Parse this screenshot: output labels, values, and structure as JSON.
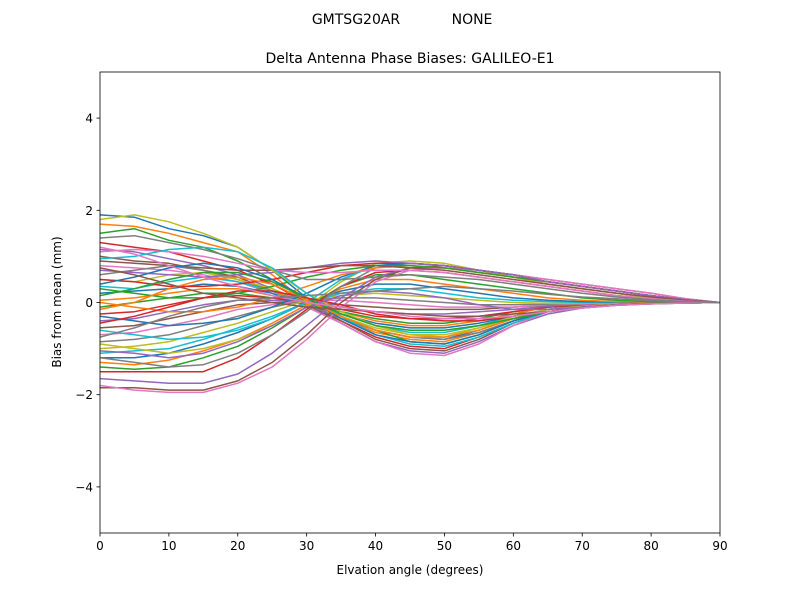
{
  "chart_data": {
    "type": "line",
    "suptitle_left": "GMTSG20AR",
    "suptitle_right": "NONE",
    "title": "Delta Antenna Phase Biases: GALILEO-E1",
    "xlabel": "Elvation angle (degrees)",
    "ylabel": "Bias from mean (mm)",
    "xlim": [
      0,
      90
    ],
    "ylim": [
      -5,
      5
    ],
    "xticks": [
      0,
      10,
      20,
      30,
      40,
      50,
      60,
      70,
      80,
      90
    ],
    "yticks": [
      -4,
      -2,
      0,
      2,
      4
    ],
    "grid": false,
    "legend": "none",
    "x": [
      0,
      5,
      10,
      15,
      20,
      25,
      30,
      35,
      40,
      45,
      50,
      55,
      60,
      65,
      70,
      75,
      80,
      85,
      90
    ],
    "color_cycle": [
      "#1f77b4",
      "#ff7f0e",
      "#2ca02c",
      "#d62728",
      "#9467bd",
      "#8c564b",
      "#e377c2",
      "#7f7f7f",
      "#bcbd22",
      "#17becf"
    ],
    "series": [
      {
        "values": [
          1.9,
          1.85,
          1.6,
          1.45,
          1.2,
          0.7,
          0.1,
          -0.3,
          -0.6,
          -0.75,
          -0.8,
          -0.6,
          -0.35,
          -0.2,
          -0.1,
          -0.05,
          -0.02,
          -0.01,
          0
        ]
      },
      {
        "values": [
          1.7,
          1.65,
          1.5,
          1.3,
          1.1,
          0.6,
          0.0,
          -0.35,
          -0.65,
          -0.8,
          -0.85,
          -0.65,
          -0.4,
          -0.2,
          -0.1,
          -0.05,
          -0.02,
          -0.01,
          0
        ]
      },
      {
        "values": [
          1.5,
          1.6,
          1.35,
          1.2,
          0.9,
          0.5,
          0.05,
          -0.3,
          -0.6,
          -0.85,
          -0.9,
          -0.7,
          -0.4,
          -0.15,
          -0.05,
          -0.02,
          -0.01,
          0,
          0
        ]
      },
      {
        "values": [
          1.3,
          1.2,
          1.1,
          0.9,
          0.7,
          0.4,
          0.0,
          -0.4,
          -0.75,
          -0.95,
          -1.0,
          -0.75,
          -0.45,
          -0.2,
          -0.1,
          -0.05,
          -0.02,
          -0.01,
          0
        ]
      },
      {
        "values": [
          1.15,
          1.1,
          0.95,
          0.8,
          0.6,
          0.3,
          -0.05,
          -0.45,
          -0.85,
          -1.05,
          -1.1,
          -0.85,
          -0.5,
          -0.25,
          -0.12,
          -0.06,
          -0.03,
          -0.01,
          0
        ]
      },
      {
        "values": [
          1.0,
          0.9,
          0.85,
          0.7,
          0.55,
          0.25,
          -0.05,
          -0.4,
          -0.8,
          -1.0,
          -1.05,
          -0.8,
          -0.45,
          -0.2,
          -0.1,
          -0.05,
          -0.02,
          -0.01,
          0
        ]
      },
      {
        "values": [
          0.8,
          0.75,
          0.7,
          0.6,
          0.45,
          0.2,
          -0.1,
          -0.45,
          -0.85,
          -1.1,
          -1.15,
          -0.9,
          -0.5,
          -0.2,
          -0.08,
          -0.04,
          -0.02,
          -0.01,
          0
        ]
      },
      {
        "values": [
          0.6,
          0.7,
          0.8,
          0.7,
          0.5,
          0.25,
          -0.05,
          -0.35,
          -0.6,
          -0.75,
          -0.8,
          -0.65,
          -0.4,
          -0.2,
          -0.1,
          -0.05,
          -0.02,
          -0.01,
          0
        ]
      },
      {
        "values": [
          0.5,
          0.45,
          0.6,
          0.65,
          0.5,
          0.3,
          0.0,
          -0.3,
          -0.55,
          -0.7,
          -0.7,
          -0.55,
          -0.35,
          -0.15,
          -0.08,
          -0.04,
          -0.02,
          -0.01,
          0
        ]
      },
      {
        "values": [
          0.35,
          0.3,
          0.45,
          0.55,
          0.45,
          0.25,
          0.0,
          -0.25,
          -0.5,
          -0.65,
          -0.65,
          -0.5,
          -0.3,
          -0.15,
          -0.07,
          -0.03,
          -0.01,
          0,
          0
        ]
      },
      {
        "values": [
          0.2,
          0.25,
          0.3,
          0.4,
          0.35,
          0.2,
          -0.05,
          -0.25,
          -0.45,
          -0.55,
          -0.55,
          -0.45,
          -0.3,
          -0.15,
          -0.07,
          -0.03,
          -0.01,
          0,
          0
        ]
      },
      {
        "values": [
          0.05,
          0.1,
          0.2,
          0.3,
          0.3,
          0.15,
          -0.05,
          -0.2,
          -0.4,
          -0.5,
          -0.5,
          -0.4,
          -0.25,
          -0.1,
          -0.05,
          -0.02,
          -0.01,
          0,
          0
        ]
      },
      {
        "values": [
          -0.1,
          0.0,
          0.1,
          0.2,
          0.2,
          0.1,
          -0.05,
          -0.2,
          -0.35,
          -0.45,
          -0.45,
          -0.35,
          -0.2,
          -0.1,
          -0.05,
          -0.02,
          -0.01,
          0,
          0
        ]
      },
      {
        "values": [
          -0.25,
          -0.2,
          -0.05,
          0.1,
          0.15,
          0.1,
          0.0,
          -0.15,
          -0.3,
          -0.35,
          -0.35,
          -0.3,
          -0.2,
          -0.1,
          -0.05,
          -0.02,
          -0.01,
          0,
          0
        ]
      },
      {
        "values": [
          -0.4,
          -0.35,
          -0.2,
          -0.05,
          0.05,
          0.05,
          0.0,
          -0.1,
          -0.2,
          -0.25,
          -0.25,
          -0.2,
          -0.15,
          -0.08,
          -0.04,
          -0.02,
          -0.01,
          0,
          0
        ]
      },
      {
        "values": [
          -0.55,
          -0.5,
          -0.35,
          -0.2,
          -0.05,
          0.0,
          0.0,
          -0.05,
          -0.1,
          -0.15,
          -0.15,
          -0.15,
          -0.1,
          -0.06,
          -0.03,
          -0.01,
          0,
          0,
          0
        ]
      },
      {
        "values": [
          -0.7,
          -0.65,
          -0.5,
          -0.35,
          -0.15,
          -0.05,
          0.05,
          0.05,
          0.0,
          -0.05,
          -0.1,
          -0.1,
          -0.1,
          -0.05,
          -0.03,
          -0.01,
          0,
          0,
          0
        ]
      },
      {
        "values": [
          -0.85,
          -0.8,
          -0.7,
          -0.5,
          -0.3,
          -0.1,
          0.05,
          0.1,
          0.1,
          0.05,
          0.0,
          -0.05,
          -0.05,
          -0.04,
          -0.02,
          -0.01,
          0,
          0,
          0
        ]
      },
      {
        "values": [
          -1.0,
          -0.95,
          -0.85,
          -0.65,
          -0.45,
          -0.2,
          0.05,
          0.15,
          0.2,
          0.15,
          0.1,
          0.05,
          0.0,
          -0.02,
          -0.02,
          -0.01,
          0,
          0,
          0
        ]
      },
      {
        "values": [
          -1.1,
          -1.05,
          -1.0,
          -0.8,
          -0.55,
          -0.3,
          0.0,
          0.2,
          0.3,
          0.3,
          0.2,
          0.1,
          0.05,
          0.02,
          0.0,
          0.0,
          0,
          0,
          0
        ]
      },
      {
        "values": [
          -1.2,
          -1.2,
          -1.1,
          -0.9,
          -0.65,
          -0.35,
          0.0,
          0.25,
          0.4,
          0.4,
          0.3,
          0.2,
          0.1,
          0.05,
          0.02,
          0.01,
          0,
          0,
          0
        ]
      },
      {
        "values": [
          -1.3,
          -1.35,
          -1.25,
          -1.05,
          -0.8,
          -0.45,
          -0.05,
          0.3,
          0.5,
          0.5,
          0.4,
          0.3,
          0.2,
          0.1,
          0.05,
          0.02,
          0.01,
          0,
          0
        ]
      },
      {
        "values": [
          -1.4,
          -1.45,
          -1.4,
          -1.2,
          -0.95,
          -0.55,
          -0.1,
          0.35,
          0.6,
          0.6,
          0.5,
          0.4,
          0.3,
          0.2,
          0.1,
          0.05,
          0.02,
          0.01,
          0
        ]
      },
      {
        "values": [
          -1.5,
          -1.5,
          -1.5,
          -1.5,
          -1.2,
          -0.7,
          -0.15,
          0.35,
          0.65,
          0.7,
          0.65,
          0.55,
          0.45,
          0.35,
          0.25,
          0.15,
          0.08,
          0.03,
          0
        ]
      },
      {
        "values": [
          -1.65,
          -1.7,
          -1.75,
          -1.75,
          -1.55,
          -1.1,
          -0.5,
          0.1,
          0.55,
          0.75,
          0.75,
          0.65,
          0.55,
          0.45,
          0.35,
          0.25,
          0.15,
          0.06,
          0
        ]
      },
      {
        "values": [
          -1.85,
          -1.85,
          -1.9,
          -1.9,
          -1.7,
          -1.3,
          -0.7,
          0.0,
          0.5,
          0.75,
          0.8,
          0.7,
          0.6,
          0.5,
          0.4,
          0.3,
          0.2,
          0.08,
          0
        ]
      },
      {
        "values": [
          -1.8,
          -1.9,
          -1.95,
          -1.95,
          -1.75,
          -1.4,
          -0.8,
          -0.1,
          0.45,
          0.7,
          0.75,
          0.7,
          0.6,
          0.5,
          0.4,
          0.3,
          0.2,
          0.08,
          0
        ]
      },
      {
        "values": [
          -1.2,
          -1.3,
          -1.4,
          -1.35,
          -1.1,
          -0.7,
          -0.2,
          0.35,
          0.75,
          0.85,
          0.8,
          0.7,
          0.55,
          0.4,
          0.3,
          0.2,
          0.1,
          0.04,
          0
        ]
      },
      {
        "values": [
          -0.9,
          -1.0,
          -1.1,
          -1.0,
          -0.8,
          -0.5,
          -0.1,
          0.45,
          0.85,
          0.9,
          0.85,
          0.7,
          0.55,
          0.4,
          0.3,
          0.2,
          0.1,
          0.04,
          0
        ]
      },
      {
        "values": [
          -0.6,
          -0.7,
          -0.8,
          -0.75,
          -0.6,
          -0.35,
          0.0,
          0.5,
          0.8,
          0.85,
          0.8,
          0.7,
          0.6,
          0.45,
          0.35,
          0.25,
          0.15,
          0.06,
          0
        ]
      },
      {
        "values": [
          -0.3,
          -0.4,
          -0.5,
          -0.45,
          -0.35,
          -0.1,
          0.2,
          0.55,
          0.8,
          0.85,
          0.8,
          0.7,
          0.6,
          0.45,
          0.35,
          0.25,
          0.15,
          0.06,
          0
        ]
      },
      {
        "values": [
          0.0,
          -0.1,
          -0.2,
          -0.2,
          -0.1,
          0.1,
          0.35,
          0.6,
          0.75,
          0.8,
          0.75,
          0.65,
          0.55,
          0.45,
          0.35,
          0.25,
          0.15,
          0.06,
          0
        ]
      },
      {
        "values": [
          0.3,
          0.2,
          0.1,
          0.1,
          0.2,
          0.35,
          0.55,
          0.7,
          0.8,
          0.8,
          0.75,
          0.65,
          0.55,
          0.45,
          0.35,
          0.25,
          0.15,
          0.06,
          0
        ]
      },
      {
        "values": [
          0.5,
          0.45,
          0.35,
          0.35,
          0.4,
          0.5,
          0.65,
          0.8,
          0.85,
          0.85,
          0.8,
          0.7,
          0.6,
          0.45,
          0.35,
          0.25,
          0.15,
          0.06,
          0
        ]
      },
      {
        "values": [
          0.7,
          0.65,
          0.6,
          0.55,
          0.6,
          0.65,
          0.75,
          0.85,
          0.9,
          0.85,
          0.8,
          0.7,
          0.6,
          0.45,
          0.35,
          0.25,
          0.15,
          0.06,
          0
        ]
      },
      {
        "values": [
          0.9,
          0.85,
          0.8,
          0.75,
          0.7,
          0.7,
          0.75,
          0.8,
          0.8,
          0.75,
          0.7,
          0.6,
          0.5,
          0.4,
          0.3,
          0.2,
          0.12,
          0.05,
          0
        ]
      },
      {
        "values": [
          1.1,
          1.15,
          1.1,
          1.0,
          0.85,
          0.7,
          0.65,
          0.65,
          0.7,
          0.7,
          0.65,
          0.55,
          0.45,
          0.35,
          0.25,
          0.15,
          0.08,
          0.03,
          0
        ]
      },
      {
        "values": [
          1.4,
          1.45,
          1.3,
          1.15,
          0.95,
          0.7,
          0.5,
          0.5,
          0.55,
          0.6,
          0.55,
          0.5,
          0.4,
          0.3,
          0.2,
          0.12,
          0.06,
          0.02,
          0
        ]
      },
      {
        "values": [
          1.8,
          1.9,
          1.75,
          1.5,
          1.2,
          0.7,
          0.2,
          -0.2,
          -0.5,
          -0.7,
          -0.75,
          -0.55,
          -0.3,
          -0.15,
          -0.08,
          -0.04,
          -0.02,
          -0.01,
          0
        ]
      },
      {
        "values": [
          0.95,
          1.0,
          1.15,
          1.2,
          1.1,
          0.75,
          0.2,
          -0.3,
          -0.7,
          -0.9,
          -0.95,
          -0.75,
          -0.45,
          -0.2,
          -0.1,
          -0.05,
          -0.02,
          -0.01,
          0
        ]
      },
      {
        "values": [
          0.4,
          0.55,
          0.75,
          0.85,
          0.75,
          0.5,
          0.1,
          -0.35,
          -0.7,
          -0.85,
          -0.9,
          -0.7,
          -0.4,
          -0.2,
          -0.1,
          -0.05,
          -0.02,
          -0.01,
          0
        ]
      },
      {
        "values": [
          -0.15,
          0.0,
          0.3,
          0.5,
          0.55,
          0.4,
          0.05,
          -0.3,
          -0.6,
          -0.75,
          -0.75,
          -0.6,
          -0.35,
          -0.2,
          -0.1,
          -0.05,
          -0.02,
          -0.01,
          0
        ]
      },
      {
        "values": [
          0.15,
          0.3,
          0.5,
          0.65,
          0.65,
          0.45,
          0.1,
          -0.25,
          -0.5,
          -0.6,
          -0.6,
          -0.5,
          -0.35,
          -0.2,
          -0.1,
          -0.05,
          -0.02,
          -0.01,
          0
        ]
      },
      {
        "values": [
          -0.45,
          -0.3,
          -0.1,
          0.1,
          0.25,
          0.25,
          0.1,
          -0.05,
          -0.25,
          -0.35,
          -0.4,
          -0.4,
          -0.3,
          -0.2,
          -0.1,
          -0.05,
          -0.02,
          -0.01,
          0
        ]
      },
      {
        "values": [
          -1.05,
          -1.1,
          -1.2,
          -1.1,
          -0.85,
          -0.5,
          -0.1,
          0.15,
          0.25,
          0.2,
          0.1,
          -0.05,
          -0.15,
          -0.15,
          -0.1,
          -0.05,
          -0.02,
          -0.01,
          0
        ]
      },
      {
        "values": [
          0.75,
          0.6,
          0.4,
          0.2,
          0.1,
          0.0,
          -0.1,
          -0.15,
          -0.2,
          -0.25,
          -0.3,
          -0.3,
          -0.25,
          -0.2,
          -0.12,
          -0.06,
          -0.03,
          -0.01,
          0
        ]
      },
      {
        "values": [
          1.2,
          1.05,
          0.8,
          0.55,
          0.35,
          0.15,
          0.0,
          -0.1,
          -0.2,
          -0.3,
          -0.35,
          -0.35,
          -0.3,
          -0.2,
          -0.12,
          -0.06,
          -0.03,
          -0.01,
          0
        ]
      },
      {
        "values": [
          -0.75,
          -0.55,
          -0.3,
          -0.1,
          0.05,
          0.1,
          0.15,
          0.2,
          0.25,
          0.3,
          0.35,
          0.3,
          0.25,
          0.18,
          0.12,
          0.08,
          0.04,
          0.02,
          0
        ]
      }
    ]
  }
}
